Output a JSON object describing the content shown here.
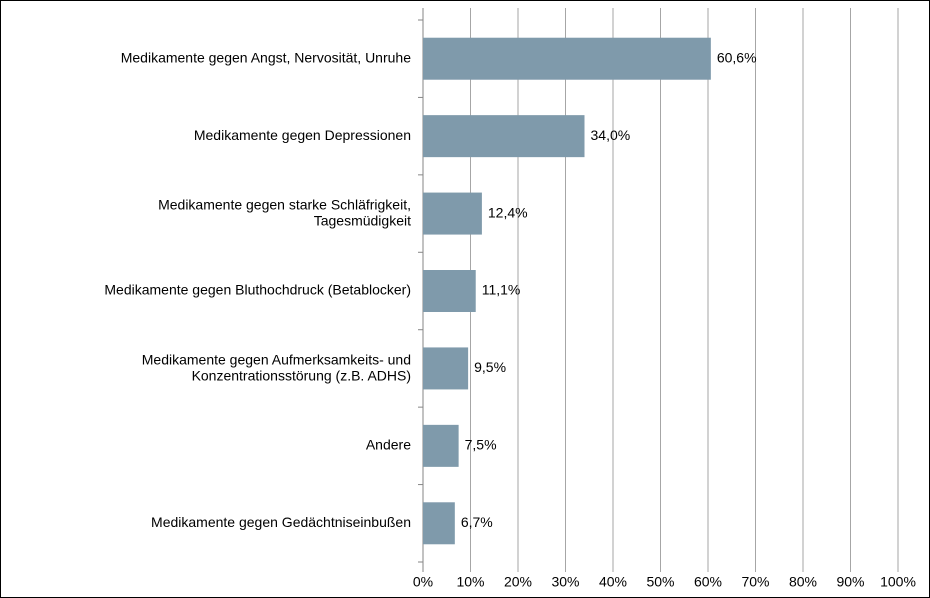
{
  "chart_data": {
    "type": "bar",
    "orientation": "horizontal",
    "categories": [
      "Medikamente gegen Angst, Nervosität, Unruhe",
      "Medikamente gegen Depressionen",
      "Medikamente gegen starke Schläfrigkeit,\nTagesmüdigkeit",
      "Medikamente gegen Bluthochdruck (Betablocker)",
      "Medikamente gegen Aufmerksamkeits- und\nKonzentrationsstörung (z.B. ADHS)",
      "Andere",
      "Medikamente gegen Gedächtniseinbußen"
    ],
    "values": [
      60.6,
      34.0,
      12.4,
      11.1,
      9.5,
      7.5,
      6.7
    ],
    "value_labels": [
      "60,6%",
      "34,0%",
      "12,4%",
      "11,1%",
      "9,5%",
      "7,5%",
      "6,7%"
    ],
    "color": "#7f9aab",
    "xlim": [
      0,
      100
    ],
    "xticks": [
      {
        "value": 0,
        "label": "0%"
      },
      {
        "value": 10,
        "label": "10%"
      },
      {
        "value": 20,
        "label": "20%"
      },
      {
        "value": 30,
        "label": "30%"
      },
      {
        "value": 40,
        "label": "40%"
      },
      {
        "value": 50,
        "label": "50%"
      },
      {
        "value": 60,
        "label": "60%"
      },
      {
        "value": 70,
        "label": "70%"
      },
      {
        "value": 80,
        "label": "80%"
      },
      {
        "value": 90,
        "label": "90%"
      },
      {
        "value": 100,
        "label": "100%"
      }
    ],
    "grid": true
  }
}
